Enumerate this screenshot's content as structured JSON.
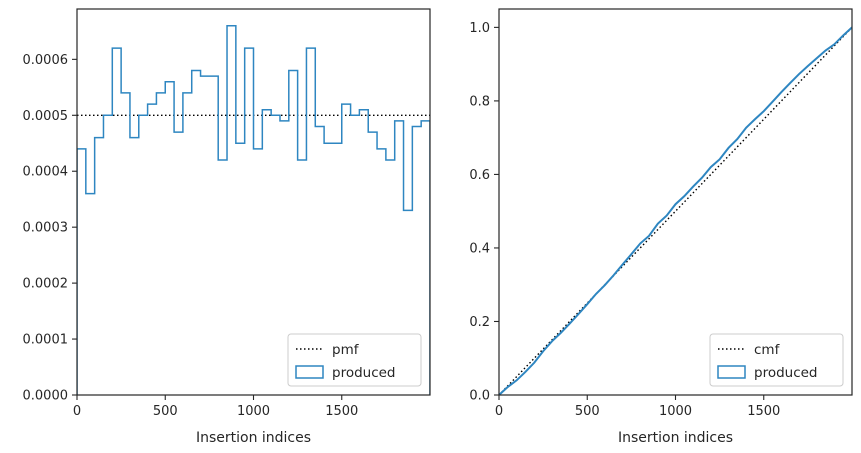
{
  "chart_data": [
    {
      "type": "histogram",
      "xlabel": "Insertion indices",
      "ylabel": "",
      "xlim": [
        0,
        2000
      ],
      "ylim": [
        0,
        0.00069
      ],
      "xticks": [
        0,
        500,
        1000,
        1500
      ],
      "xtick_labels": [
        "0",
        "500",
        "1000",
        "1500"
      ],
      "yticks": [
        0,
        0.0001,
        0.0002,
        0.0003,
        0.0004,
        0.0005,
        0.0006
      ],
      "ytick_labels": [
        "0.0000",
        "0.0001",
        "0.0002",
        "0.0003",
        "0.0004",
        "0.0005",
        "0.0006"
      ],
      "bin_width": 50,
      "series": [
        {
          "name": "pmf",
          "style": "dotted",
          "color": "#000000",
          "value": 0.0005
        },
        {
          "name": "produced",
          "style": "step",
          "color": "#2e86c1",
          "bin_edges_start": 0,
          "values": [
            0.00044,
            0.00036,
            0.00046,
            0.0005,
            0.00062,
            0.00054,
            0.00046,
            0.0005,
            0.00052,
            0.00054,
            0.00056,
            0.00047,
            0.00054,
            0.00058,
            0.00057,
            0.00057,
            0.00042,
            0.00066,
            0.00045,
            0.00062,
            0.00044,
            0.00051,
            0.0005,
            0.00049,
            0.00058,
            0.00042,
            0.00062,
            0.00048,
            0.00045,
            0.00045,
            0.00052,
            0.0005,
            0.00051,
            0.00047,
            0.00044,
            0.00042,
            0.00049,
            0.00033,
            0.00048,
            0.00049
          ]
        }
      ],
      "legend": {
        "position": "lower-right",
        "entries": [
          "pmf",
          "produced"
        ]
      }
    },
    {
      "type": "line",
      "xlabel": "Insertion indices",
      "ylabel": "",
      "xlim": [
        0,
        2000
      ],
      "ylim": [
        0,
        1.05
      ],
      "xticks": [
        0,
        500,
        1000,
        1500
      ],
      "xtick_labels": [
        "0",
        "500",
        "1000",
        "1500"
      ],
      "yticks": [
        0,
        0.2,
        0.4,
        0.6,
        0.8,
        1.0
      ],
      "ytick_labels": [
        "0.0",
        "0.2",
        "0.4",
        "0.6",
        "0.8",
        "1.0"
      ],
      "series": [
        {
          "name": "cmf",
          "style": "dotted",
          "color": "#000000",
          "x": [
            0,
            2000
          ],
          "y": [
            0,
            1.0
          ]
        },
        {
          "name": "produced",
          "style": "solid",
          "color": "#2e86c1",
          "x": [
            0,
            50,
            100,
            150,
            200,
            250,
            300,
            350,
            400,
            450,
            500,
            550,
            600,
            650,
            700,
            750,
            800,
            850,
            900,
            950,
            1000,
            1050,
            1100,
            1150,
            1200,
            1250,
            1300,
            1350,
            1400,
            1450,
            1500,
            1550,
            1600,
            1650,
            1700,
            1750,
            1800,
            1850,
            1900,
            1950,
            2000
          ],
          "y": [
            0,
            0.022,
            0.04,
            0.063,
            0.088,
            0.119,
            0.146,
            0.169,
            0.194,
            0.22,
            0.247,
            0.275,
            0.299,
            0.326,
            0.355,
            0.383,
            0.412,
            0.433,
            0.466,
            0.488,
            0.519,
            0.541,
            0.567,
            0.591,
            0.62,
            0.641,
            0.672,
            0.696,
            0.727,
            0.75,
            0.772,
            0.798,
            0.824,
            0.849,
            0.873,
            0.895,
            0.916,
            0.937,
            0.954,
            0.978,
            1.0
          ]
        }
      ],
      "legend": {
        "position": "lower-right",
        "entries": [
          "cmf",
          "produced"
        ]
      }
    }
  ]
}
